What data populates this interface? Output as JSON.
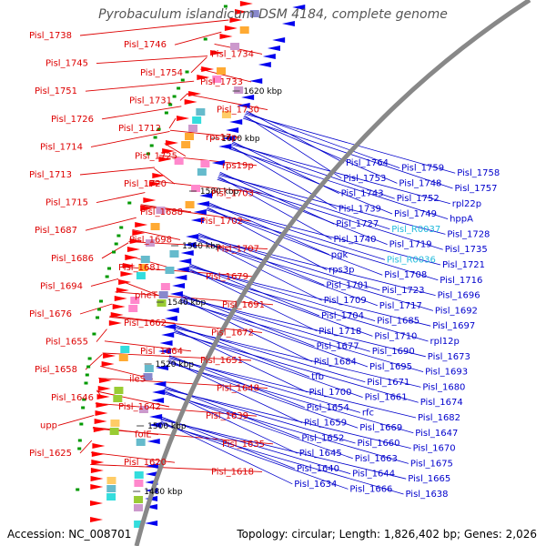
{
  "title": "Pyrobaculum islandicum DSM 4184, complete genome",
  "footer": {
    "accession": "Accession: NC_008701",
    "topology": "Topology: circular; Length: 1,826,402 bp; Genes: 2,026"
  },
  "colors": {
    "left_label": "#dd0000",
    "right_label": "#0000cc",
    "rna_label": "#22bbdd",
    "forward_arrow": "#ff0000",
    "reverse_arrow": "#0000ee",
    "backbone": "#888888",
    "gc_marker": "#009900"
  },
  "scale_ticks": [
    "1620 kbp",
    "1600 kbp",
    "1580 kbp",
    "1560 kbp",
    "1540 kbp",
    "1520 kbp",
    "1500 kbp",
    "1480 kbp"
  ],
  "left_labels": [
    "Pisl_1738",
    "Pisl_1746",
    "Pisl_1734",
    "Pisl_1745",
    "Pisl_1754",
    "Pisl_1733",
    "Pisl_1751",
    "Pisl_1731",
    "Pisl_1730",
    "Pisl_1726",
    "Pisl_1712",
    "rps17p",
    "Pisl_1714",
    "Pisl_1725",
    "rps19p",
    "Pisl_1713",
    "Pisl_1720",
    "Pisl_1703",
    "Pisl_1715",
    "Pisl_1688",
    "Pisl_1702",
    "Pisl_1687",
    "Pisl_1698",
    "Pisl_1707",
    "Pisl_1686",
    "Pisl_1681",
    "Pisl_1679",
    "Pisl_1694",
    "pheT",
    "Pisl_1691",
    "Pisl_1676",
    "Pisl_1662",
    "Pisl_1672",
    "Pisl_1655",
    "Pisl_1664",
    "Pisl_1651",
    "Pisl_1658",
    "ileS",
    "Pisl_1648",
    "Pisl_1646",
    "Pisl_1642",
    "Pisl_1639",
    "upp",
    "folE",
    "Pisl_1635",
    "Pisl_1625",
    "Pisl_1620",
    "Pisl_1618"
  ],
  "right_labels": [
    "Pisl_1764",
    "Pisl_1759",
    "Pisl_1758",
    "Pisl_1753",
    "Pisl_1748",
    "Pisl_1757",
    "Pisl_1743",
    "Pisl_1752",
    "rpl22p",
    "Pisl_1739",
    "Pisl_1749",
    "hppA",
    "Pisl_1727",
    "Pisl_R0037",
    "Pisl_1728",
    "Pisl_1740",
    "Pisl_1719",
    "Pisl_1735",
    "pgk",
    "Pisl_R0036",
    "Pisl_1721",
    "rps3p",
    "Pisl_1708",
    "Pisl_1716",
    "Pisl_1701",
    "Pisl_1723",
    "Pisl_1696",
    "Pisl_1709",
    "Pisl_1717",
    "Pisl_1692",
    "Pisl_1704",
    "Pisl_1685",
    "Pisl_1697",
    "Pisl_1718",
    "Pisl_1710",
    "rpl12p",
    "Pisl_1677",
    "Pisl_1690",
    "Pisl_1673",
    "Pisl_1684",
    "Pisl_1695",
    "Pisl_1693",
    "tfb",
    "Pisl_1671",
    "Pisl_1680",
    "Pisl_1700",
    "Pisl_1661",
    "Pisl_1674",
    "Pisl_1654",
    "rfc",
    "Pisl_1682",
    "Pisl_1659",
    "Pisl_1669",
    "Pisl_1647",
    "Pisl_1652",
    "Pisl_1660",
    "Pisl_1670",
    "Pisl_1645",
    "Pisl_1663",
    "Pisl_1675",
    "Pisl_1640",
    "Pisl_1644",
    "Pisl_1665",
    "Pisl_1634",
    "Pisl_1666",
    "Pisl_1638"
  ]
}
